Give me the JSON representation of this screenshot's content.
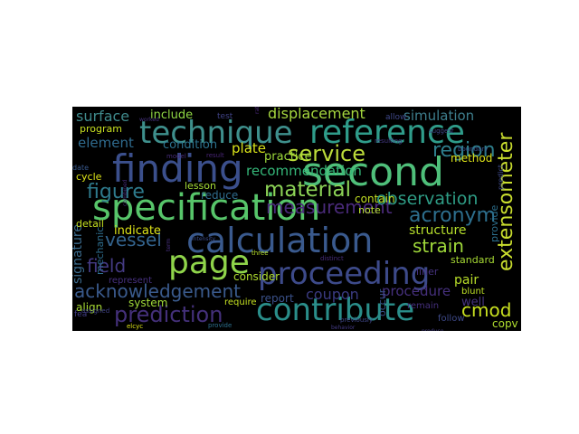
{
  "wordcloud": {
    "background": "#000000",
    "words": [
      {
        "text": "technique",
        "color": "#3e8f8c"
      },
      {
        "text": "reference",
        "color": "#2f9c8a"
      },
      {
        "text": "finding",
        "color": "#3b4f8c"
      },
      {
        "text": "second",
        "color": "#4fbf7a"
      },
      {
        "text": "specification",
        "color": "#57c56a"
      },
      {
        "text": "calculation",
        "color": "#3a5a8e"
      },
      {
        "text": "page",
        "color": "#8fd44a"
      },
      {
        "text": "proceeding",
        "color": "#3d4a8a"
      },
      {
        "text": "contribute",
        "color": "#2a8e8a"
      },
      {
        "text": "extensometer",
        "color": "#c9dd2e"
      },
      {
        "text": "service",
        "color": "#bcdc3a"
      },
      {
        "text": "region",
        "color": "#2e7e8c"
      },
      {
        "text": "acronym",
        "color": "#2d6f8e"
      },
      {
        "text": "material",
        "color": "#8cd356"
      },
      {
        "text": "figure",
        "color": "#2e7a8c"
      },
      {
        "text": "measurement",
        "color": "#4a2a7a"
      },
      {
        "text": "observation",
        "color": "#2e9c85"
      },
      {
        "text": "acknowledgement",
        "color": "#3a5a8c"
      },
      {
        "text": "prediction",
        "color": "#44307a"
      },
      {
        "text": "strain",
        "color": "#9fd83a"
      },
      {
        "text": "vessel",
        "color": "#33638d"
      },
      {
        "text": "field",
        "color": "#443a83"
      },
      {
        "text": "cmod",
        "color": "#c8e020"
      },
      {
        "text": "surface",
        "color": "#3f8a8c"
      },
      {
        "text": "displacement",
        "color": "#a5d63e"
      },
      {
        "text": "simulation",
        "color": "#3e7f8e"
      },
      {
        "text": "element",
        "color": "#2f6b8e"
      },
      {
        "text": "recommendation",
        "color": "#35b779"
      },
      {
        "text": "signature",
        "color": "#3b6a8c"
      },
      {
        "text": "plate",
        "color": "#d8e219"
      },
      {
        "text": "structure",
        "color": "#b5de2b"
      },
      {
        "text": "coupon",
        "color": "#3a3a80"
      },
      {
        "text": "procedure",
        "color": "#46307e"
      },
      {
        "text": "condition",
        "color": "#2c728e"
      },
      {
        "text": "include",
        "color": "#8fd744"
      },
      {
        "text": "indicate",
        "color": "#dde318"
      },
      {
        "text": "pair",
        "color": "#b8de29"
      },
      {
        "text": "well",
        "color": "#46327e"
      },
      {
        "text": "copv",
        "color": "#b0dd2f"
      },
      {
        "text": "provide",
        "color": "#2d708e"
      },
      {
        "text": "system",
        "color": "#a0da39"
      },
      {
        "text": "align",
        "color": "#a8db34"
      },
      {
        "text": "report",
        "color": "#3b528b"
      },
      {
        "text": "practice",
        "color": "#9dd93b"
      },
      {
        "text": "liner",
        "color": "#46337f"
      },
      {
        "text": "method",
        "color": "#dde318"
      },
      {
        "text": "consider",
        "color": "#b0dd2f"
      },
      {
        "text": "occur",
        "color": "#3b528b"
      },
      {
        "text": "lesson",
        "color": "#a5db36"
      },
      {
        "text": "reduce",
        "color": "#2f6c8e"
      },
      {
        "text": "contain",
        "color": "#c2df23"
      },
      {
        "text": "detail",
        "color": "#c5e021"
      },
      {
        "text": "note",
        "color": "#b3dc2b"
      },
      {
        "text": "cycle",
        "color": "#dde318"
      },
      {
        "text": "program",
        "color": "#c8e020"
      },
      {
        "text": "mechanic",
        "color": "#2e6e8e"
      },
      {
        "text": "standard",
        "color": "#a8db34"
      },
      {
        "text": "represent",
        "color": "#46307e"
      },
      {
        "text": "require",
        "color": "#c5e021"
      },
      {
        "text": "follow",
        "color": "#3e4a89"
      },
      {
        "text": "remain",
        "color": "#46307e"
      },
      {
        "text": "blunt",
        "color": "#bddf26"
      },
      {
        "text": "test",
        "color": "#404387"
      },
      {
        "text": "allow",
        "color": "#3f4889"
      },
      {
        "text": "date",
        "color": "#38588c"
      },
      {
        "text": "model",
        "color": "#472d7b"
      },
      {
        "text": "result",
        "color": "#482576"
      },
      {
        "text": "intensity",
        "color": "#3d4e8a"
      },
      {
        "text": "three",
        "color": "#b5de2b"
      },
      {
        "text": "distinct",
        "color": "#472c7a"
      },
      {
        "text": "suggest",
        "color": "#3f4788"
      },
      {
        "text": "boundary",
        "color": "#3b518b"
      },
      {
        "text": "resulting",
        "color": "#443983"
      },
      {
        "text": "previously",
        "color": "#3f4788"
      },
      {
        "text": "predict",
        "color": "#3e4989"
      },
      {
        "text": "fea",
        "color": "#423f85"
      },
      {
        "text": "elcyc",
        "color": "#dde318"
      },
      {
        "text": "provide",
        "color": "#2d708e"
      },
      {
        "text": "assigned",
        "color": "#404387"
      },
      {
        "text": "worked",
        "color": "#46327e"
      },
      {
        "text": "produce",
        "color": "#433e85"
      },
      {
        "text": "combined",
        "color": "#472c7a"
      },
      {
        "text": "rate",
        "color": "#482677"
      },
      {
        "text": "term",
        "color": "#46307e"
      },
      {
        "text": "behavior",
        "color": "#443a83"
      }
    ]
  }
}
